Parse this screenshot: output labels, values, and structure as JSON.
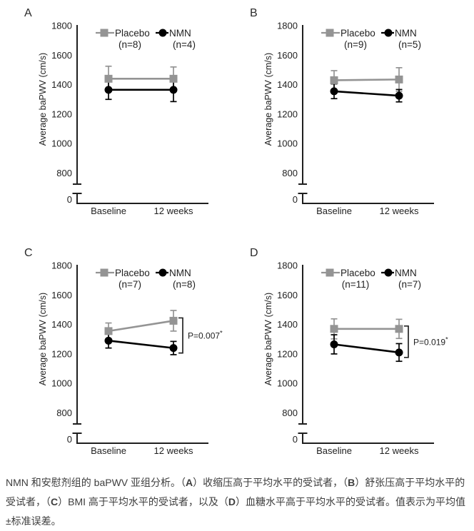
{
  "figure": {
    "background": "#ffffff",
    "colors": {
      "placebo": "#949494",
      "nmn": "#000000",
      "axis": "#1f1f1f",
      "label_text": "#1f1f1f",
      "panel_letter": "#2a2a2a",
      "caption_text": "#3d3d3d",
      "bracket": "#242424"
    }
  },
  "chart_data": [
    {
      "type": "line",
      "panel": "A",
      "ylabel": "Average baPWV (cm/s)",
      "yticks": [
        1800,
        1600,
        1400,
        1200,
        1000,
        800
      ],
      "y_break_label": "0",
      "ylim": [
        800,
        1800
      ],
      "axis_break_to_zero": true,
      "grid": false,
      "legend_position": "top-inside",
      "categories": [
        "Baseline",
        "12 weeks"
      ],
      "series": [
        {
          "name": "Placebo",
          "n_label": "(n=8)",
          "marker": "square",
          "color": "#949494",
          "values": [
            1440,
            1440
          ],
          "errors": [
            85,
            80
          ]
        },
        {
          "name": "NMN",
          "n_label": "(n=4)",
          "marker": "circle",
          "color": "#000000",
          "values": [
            1365,
            1365
          ],
          "errors": [
            65,
            80
          ]
        }
      ],
      "p_label": null,
      "p_star": null
    },
    {
      "type": "line",
      "panel": "B",
      "ylabel": "Average baPWV (cm/s)",
      "yticks": [
        1800,
        1600,
        1400,
        1200,
        1000,
        800
      ],
      "y_break_label": "0",
      "ylim": [
        800,
        1800
      ],
      "axis_break_to_zero": true,
      "grid": false,
      "legend_position": "top-inside",
      "categories": [
        "Baseline",
        "12 weeks"
      ],
      "series": [
        {
          "name": "Placebo",
          "n_label": "(n=9)",
          "marker": "square",
          "color": "#949494",
          "values": [
            1430,
            1435
          ],
          "errors": [
            65,
            80
          ]
        },
        {
          "name": "NMN",
          "n_label": "(n=5)",
          "marker": "circle",
          "color": "#000000",
          "values": [
            1355,
            1325
          ],
          "errors": [
            50,
            42
          ]
        }
      ],
      "p_label": null,
      "p_star": null
    },
    {
      "type": "line",
      "panel": "C",
      "ylabel": "Average baPWV (cm/s)",
      "yticks": [
        1800,
        1600,
        1400,
        1200,
        1000,
        800
      ],
      "y_break_label": "0",
      "ylim": [
        800,
        1800
      ],
      "axis_break_to_zero": true,
      "grid": false,
      "legend_position": "top-inside",
      "categories": [
        "Baseline",
        "12 weeks"
      ],
      "series": [
        {
          "name": "Placebo",
          "n_label": "(n=7)",
          "marker": "square",
          "color": "#949494",
          "values": [
            1355,
            1425
          ],
          "errors": [
            55,
            70
          ]
        },
        {
          "name": "NMN",
          "n_label": "(n=8)",
          "marker": "circle",
          "color": "#000000",
          "values": [
            1290,
            1240
          ],
          "errors": [
            50,
            45
          ]
        }
      ],
      "p_label": "P=0.007",
      "p_star": "*"
    },
    {
      "type": "line",
      "panel": "D",
      "ylabel": "Average baPWV (cm/s)",
      "yticks": [
        1800,
        1600,
        1400,
        1200,
        1000,
        800
      ],
      "y_break_label": "0",
      "ylim": [
        800,
        1800
      ],
      "axis_break_to_zero": true,
      "grid": false,
      "legend_position": "top-inside",
      "categories": [
        "Baseline",
        "12 weeks"
      ],
      "series": [
        {
          "name": "Placebo",
          "n_label": "(n=11)",
          "marker": "square",
          "color": "#949494",
          "values": [
            1370,
            1370
          ],
          "errors": [
            68,
            65
          ]
        },
        {
          "name": "NMN",
          "n_label": "(n=7)",
          "marker": "circle",
          "color": "#000000",
          "values": [
            1265,
            1210
          ],
          "errors": [
            65,
            60
          ]
        }
      ],
      "p_label": "P=0.019",
      "p_star": "*"
    }
  ],
  "caption": {
    "segments": [
      {
        "text": "NMN 和安慰剂组的 baPWV 亚组分析。（",
        "bold": false
      },
      {
        "text": "A",
        "bold": true
      },
      {
        "text": "）收缩压高于平均水平的受试者，（",
        "bold": false
      },
      {
        "text": "B",
        "bold": true
      },
      {
        "text": "）舒张压高于平均水平的受试者，（",
        "bold": false
      },
      {
        "text": "C",
        "bold": true
      },
      {
        "text": "）BMI 高于平均水平的受试者，以及（",
        "bold": false
      },
      {
        "text": "D",
        "bold": true
      },
      {
        "text": "）血糖水平高于平均水平的受试者。值表示为平均值±标准误差。",
        "bold": false
      }
    ]
  }
}
